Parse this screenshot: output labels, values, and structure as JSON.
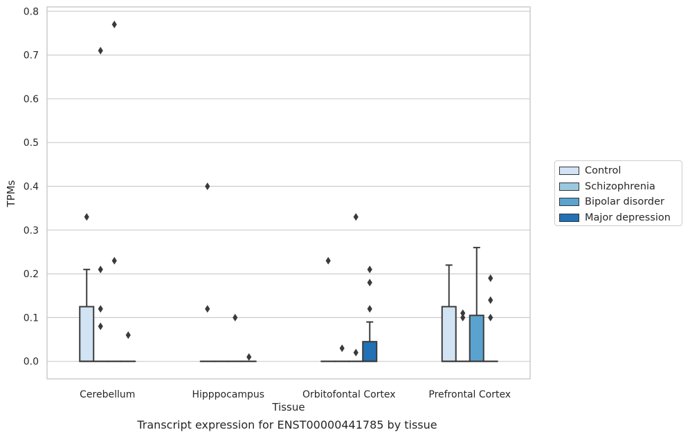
{
  "caption": "Transcript expression for ENST00000441785 by tissue",
  "colors": {
    "Control": "#d2e3f3",
    "Schizophrenia": "#9ac8e0",
    "Bipolar disorder": "#5ba3cf",
    "Major depression": "#2271b5"
  },
  "chart_data": {
    "type": "box",
    "title": "",
    "xlabel": "Tissue",
    "ylabel": "TPMs",
    "ylim": [
      -0.04,
      0.81
    ],
    "yticks": [
      0.0,
      0.1,
      0.2,
      0.3,
      0.4,
      0.5,
      0.6,
      0.7,
      0.8
    ],
    "ytick_labels": [
      "0.0",
      "0.1",
      "0.2",
      "0.3",
      "0.4",
      "0.5",
      "0.6",
      "0.7",
      "0.8"
    ],
    "grid": "horizontal",
    "legend_position": "right",
    "categories": [
      "Cerebellum",
      "Hipppocampus",
      "Orbitofontal Cortex",
      "Prefrontal Cortex"
    ],
    "series": [
      {
        "name": "Control",
        "boxes": [
          {
            "q1": 0.0,
            "median": 0.0,
            "q3": 0.125,
            "whisker_low": 0.0,
            "whisker_high": 0.21,
            "outliers": [
              0.33
            ]
          },
          {
            "q1": 0.0,
            "median": 0.0,
            "q3": 0.0,
            "whisker_low": 0.0,
            "whisker_high": 0.0,
            "outliers": [
              0.4,
              0.12
            ]
          },
          {
            "q1": 0.0,
            "median": 0.0,
            "q3": 0.0,
            "whisker_low": 0.0,
            "whisker_high": 0.0,
            "outliers": [
              0.23
            ]
          },
          {
            "q1": 0.0,
            "median": 0.0,
            "q3": 0.125,
            "whisker_low": 0.0,
            "whisker_high": 0.22,
            "outliers": []
          }
        ]
      },
      {
        "name": "Schizophrenia",
        "boxes": [
          {
            "q1": 0.0,
            "median": 0.0,
            "q3": 0.0,
            "whisker_low": 0.0,
            "whisker_high": 0.0,
            "outliers": [
              0.71,
              0.21,
              0.12,
              0.08
            ]
          },
          {
            "q1": 0.0,
            "median": 0.0,
            "q3": 0.0,
            "whisker_low": 0.0,
            "whisker_high": 0.0,
            "outliers": []
          },
          {
            "q1": 0.0,
            "median": 0.0,
            "q3": 0.0,
            "whisker_low": 0.0,
            "whisker_high": 0.0,
            "outliers": [
              0.03
            ]
          },
          {
            "q1": 0.0,
            "median": 0.0,
            "q3": 0.0,
            "whisker_low": 0.0,
            "whisker_high": 0.0,
            "outliers": [
              0.11,
              0.1
            ]
          }
        ]
      },
      {
        "name": "Bipolar disorder",
        "boxes": [
          {
            "q1": 0.0,
            "median": 0.0,
            "q3": 0.0,
            "whisker_low": 0.0,
            "whisker_high": 0.0,
            "outliers": [
              0.77,
              0.23
            ]
          },
          {
            "q1": 0.0,
            "median": 0.0,
            "q3": 0.0,
            "whisker_low": 0.0,
            "whisker_high": 0.0,
            "outliers": [
              0.1
            ]
          },
          {
            "q1": 0.0,
            "median": 0.0,
            "q3": 0.0,
            "whisker_low": 0.0,
            "whisker_high": 0.0,
            "outliers": [
              0.33,
              0.02
            ]
          },
          {
            "q1": 0.0,
            "median": 0.0,
            "q3": 0.105,
            "whisker_low": 0.0,
            "whisker_high": 0.26,
            "outliers": []
          }
        ]
      },
      {
        "name": "Major depression",
        "boxes": [
          {
            "q1": 0.0,
            "median": 0.0,
            "q3": 0.0,
            "whisker_low": 0.0,
            "whisker_high": 0.0,
            "outliers": [
              0.06
            ]
          },
          {
            "q1": 0.0,
            "median": 0.0,
            "q3": 0.0,
            "whisker_low": 0.0,
            "whisker_high": 0.0,
            "outliers": [
              0.01
            ]
          },
          {
            "q1": 0.0,
            "median": 0.0,
            "q3": 0.045,
            "whisker_low": 0.0,
            "whisker_high": 0.09,
            "outliers": [
              0.21,
              0.18,
              0.12
            ]
          },
          {
            "q1": 0.0,
            "median": 0.0,
            "q3": 0.0,
            "whisker_low": 0.0,
            "whisker_high": 0.0,
            "outliers": [
              0.19,
              0.14,
              0.1
            ]
          }
        ]
      }
    ]
  }
}
